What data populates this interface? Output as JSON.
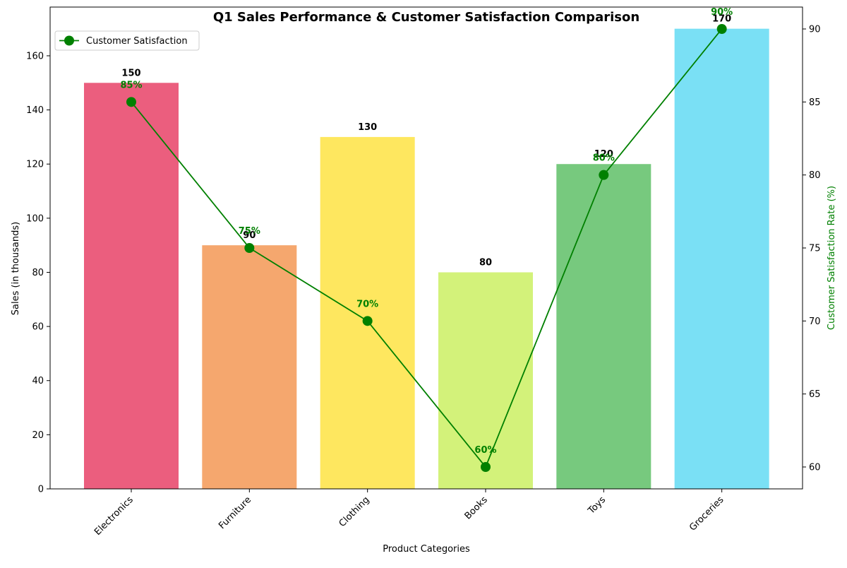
{
  "chart_data": {
    "type": "bar",
    "title": "Q1 Sales Performance & Customer Satisfaction Comparison",
    "xlabel": "Product Categories",
    "ylabel": "Sales (in thousands)",
    "y2label": "Customer Satisfaction Rate (%)",
    "categories": [
      "Electronics",
      "Furniture",
      "Clothing",
      "Books",
      "Toys",
      "Groceries"
    ],
    "series": [
      {
        "type": "bar",
        "values": [
          150,
          90,
          130,
          80,
          120,
          170
        ],
        "value_labels": [
          "150",
          "90",
          "130",
          "80",
          "120",
          "170"
        ],
        "colors": [
          "#eb5e7e",
          "#f5a76e",
          "#fee75f",
          "#d3f27a",
          "#77c97e",
          "#7ae0f5"
        ]
      },
      {
        "type": "line",
        "name": "Customer Satisfaction",
        "axis": "right",
        "values": [
          85,
          75,
          70,
          60,
          80,
          90
        ],
        "value_labels": [
          "85%",
          "75%",
          "70%",
          "60%",
          "80%",
          "90%"
        ],
        "color": "#008000"
      }
    ],
    "ylim": [
      0,
      178
    ],
    "y2lim": [
      58.5,
      91.5
    ],
    "yticks": [
      "0",
      "20",
      "40",
      "60",
      "80",
      "100",
      "120",
      "140",
      "160"
    ],
    "y2ticks": [
      "60",
      "65",
      "70",
      "75",
      "80",
      "85",
      "90"
    ],
    "legend": {
      "position": "top-left",
      "entries": [
        "Customer Satisfaction"
      ]
    },
    "grid": false
  }
}
